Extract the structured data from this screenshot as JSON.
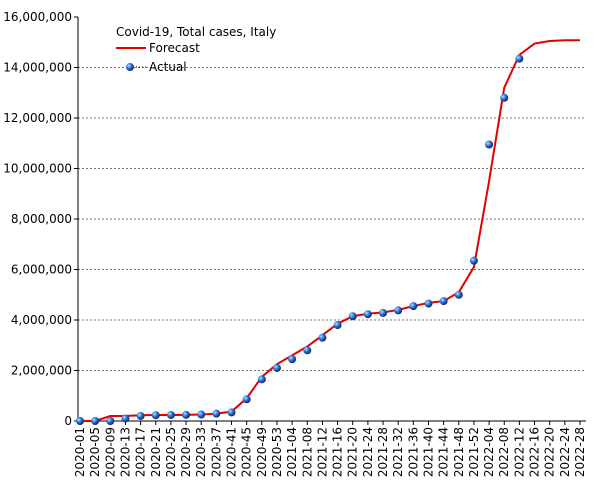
{
  "chart_data": {
    "type": "line",
    "title": "Covid-19, Total cases, Italy",
    "categories": [
      "2020-01",
      "2020-05",
      "2020-09",
      "2020-13",
      "2020-17",
      "2020-21",
      "2020-25",
      "2020-29",
      "2020-33",
      "2020-37",
      "2020-41",
      "2020-45",
      "2020-49",
      "2020-53",
      "2021-04",
      "2021-08",
      "2021-12",
      "2021-16",
      "2021-20",
      "2021-24",
      "2021-28",
      "2021-32",
      "2021-36",
      "2021-40",
      "2021-44",
      "2021-48",
      "2021-52",
      "2022-04",
      "2022-08",
      "2022-12",
      "2022-16",
      "2022-20",
      "2022-24",
      "2022-28"
    ],
    "series": [
      {
        "name": "Forecast",
        "color": "#e00000",
        "style": "line",
        "values": [
          0,
          0,
          200000,
          200000,
          230000,
          240000,
          240000,
          245000,
          255000,
          290000,
          370000,
          900000,
          1750000,
          2250000,
          2600000,
          2950000,
          3400000,
          3850000,
          4150000,
          4250000,
          4300000,
          4400000,
          4550000,
          4680000,
          4750000,
          5100000,
          6100000,
          9500000,
          13200000,
          14500000,
          14950000,
          15050000,
          15080000,
          15080000
        ]
      },
      {
        "name": "Actual",
        "color": "#1f5fbf",
        "style": "dots",
        "values": [
          0,
          0,
          0,
          100000,
          200000,
          230000,
          240000,
          245000,
          255000,
          290000,
          340000,
          860000,
          1650000,
          2100000,
          2450000,
          2800000,
          3300000,
          3800000,
          4150000,
          4230000,
          4280000,
          4380000,
          4550000,
          4650000,
          4750000,
          5000000,
          6350000,
          10950000,
          12800000,
          14350000,
          null,
          null,
          null,
          null
        ]
      }
    ],
    "ylim": [
      0,
      16000000
    ],
    "yticks": [
      0,
      {
        "value": 2000000,
        "label": "2,000,000"
      },
      {
        "value": 4000000,
        "label": "4,000,000"
      },
      {
        "value": 6000000,
        "label": "6,000,000"
      },
      {
        "value": 8000000,
        "label": "8,000,000"
      },
      {
        "value": 10000000,
        "label": "10,000,000"
      },
      {
        "value": 12000000,
        "label": "12,000,000"
      },
      {
        "value": 14000000,
        "label": "14,000,000"
      },
      {
        "value": 16000000,
        "label": "16,000,000"
      }
    ],
    "grid": true
  }
}
